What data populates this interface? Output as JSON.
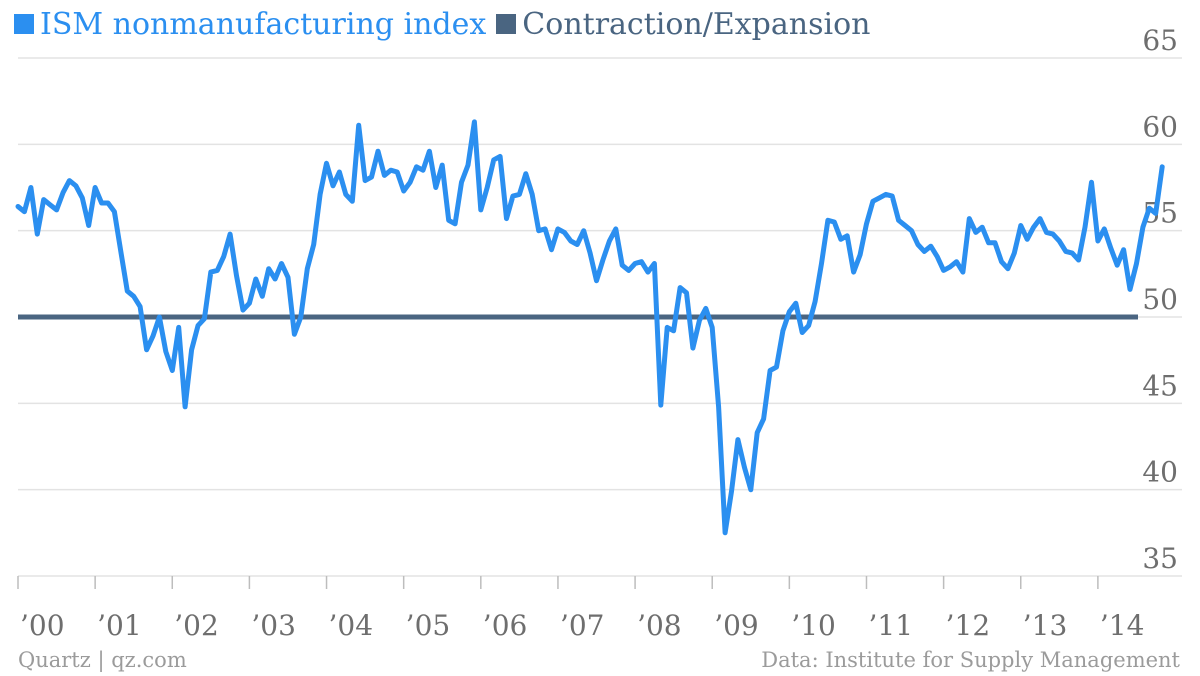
{
  "chart_data": {
    "type": "line",
    "xlim": [
      2000.0,
      2014.52
    ],
    "ylim": [
      35,
      65
    ],
    "yticks": [
      35,
      40,
      45,
      50,
      55,
      60,
      65
    ],
    "xtick_labels": [
      {
        "year": 2000,
        "label": "’00"
      },
      {
        "year": 2001,
        "label": "’01"
      },
      {
        "year": 2002,
        "label": "’02"
      },
      {
        "year": 2003,
        "label": "’03"
      },
      {
        "year": 2004,
        "label": "’04"
      },
      {
        "year": 2005,
        "label": "’05"
      },
      {
        "year": 2006,
        "label": "’06"
      },
      {
        "year": 2007,
        "label": "’07"
      },
      {
        "year": 2008,
        "label": "’08"
      },
      {
        "year": 2009,
        "label": "’09"
      },
      {
        "year": 2010,
        "label": "’10"
      },
      {
        "year": 2011,
        "label": "’11"
      },
      {
        "year": 2012,
        "label": "’12"
      },
      {
        "year": 2013,
        "label": "’13"
      },
      {
        "year": 2014,
        "label": "’14"
      }
    ],
    "legend_position": "top-left",
    "series": [
      {
        "name": "ISM nonmanufacturing index",
        "color": "#2b8ff0",
        "x_start": 2000.0,
        "x_step_months": 1,
        "values": [
          56.4,
          56.1,
          57.5,
          54.8,
          56.8,
          56.5,
          56.2,
          57.2,
          57.9,
          57.6,
          56.9,
          55.3,
          57.5,
          56.6,
          56.6,
          56.1,
          53.8,
          51.5,
          51.2,
          50.6,
          48.1,
          48.9,
          50.0,
          48.0,
          46.9,
          49.4,
          44.8,
          48.1,
          49.5,
          49.9,
          52.6,
          52.7,
          53.5,
          54.8,
          52.4,
          50.4,
          50.8,
          52.2,
          51.2,
          52.8,
          52.2,
          53.1,
          52.3,
          49.0,
          50.0,
          52.8,
          54.2,
          57.1,
          58.9,
          57.6,
          58.4,
          57.1,
          56.7,
          61.1,
          57.9,
          58.1,
          59.6,
          58.2,
          58.5,
          58.4,
          57.3,
          57.8,
          58.7,
          58.5,
          59.6,
          57.5,
          58.8,
          55.6,
          55.4,
          57.8,
          58.8,
          61.3,
          56.2,
          57.5,
          59.1,
          59.3,
          55.7,
          57.0,
          57.1,
          58.3,
          57.1,
          55.0,
          55.1,
          53.9,
          55.1,
          54.9,
          54.4,
          54.2,
          55.0,
          53.7,
          52.1,
          53.3,
          54.4,
          55.1,
          53.0,
          52.7,
          53.1,
          53.2,
          52.6,
          53.1,
          44.9,
          49.4,
          49.2,
          51.7,
          51.4,
          48.2,
          49.8,
          50.5,
          49.4,
          44.8,
          37.5,
          39.9,
          42.9,
          41.3,
          40.0,
          43.3,
          44.1,
          46.9,
          47.1,
          49.2,
          50.3,
          50.8,
          49.1,
          49.5,
          50.9,
          53.1,
          55.6,
          55.5,
          54.5,
          54.7,
          52.6,
          53.6,
          55.4,
          56.7,
          56.9,
          57.1,
          57.0,
          55.6,
          55.3,
          55.0,
          54.2,
          53.8,
          54.1,
          53.5,
          52.7,
          52.9,
          53.2,
          52.6,
          55.7,
          54.9,
          55.2,
          54.3,
          54.3,
          53.2,
          52.8,
          53.7,
          55.3,
          54.5,
          55.2,
          55.7,
          54.9,
          54.8,
          54.4,
          53.8,
          53.7,
          53.3,
          55.2,
          57.8,
          54.4,
          55.1,
          54.0,
          53.0,
          53.9,
          51.6,
          53.1,
          55.2,
          56.3,
          56.0,
          58.7
        ]
      },
      {
        "name": "Contraction/Expansion",
        "color": "#4a6581",
        "x": [
          2000.0,
          2014.52
        ],
        "values": [
          50,
          50
        ]
      }
    ]
  },
  "footer": {
    "source_left": "Quartz | qz.com",
    "source_right": "Data: Institute for Supply Management"
  }
}
